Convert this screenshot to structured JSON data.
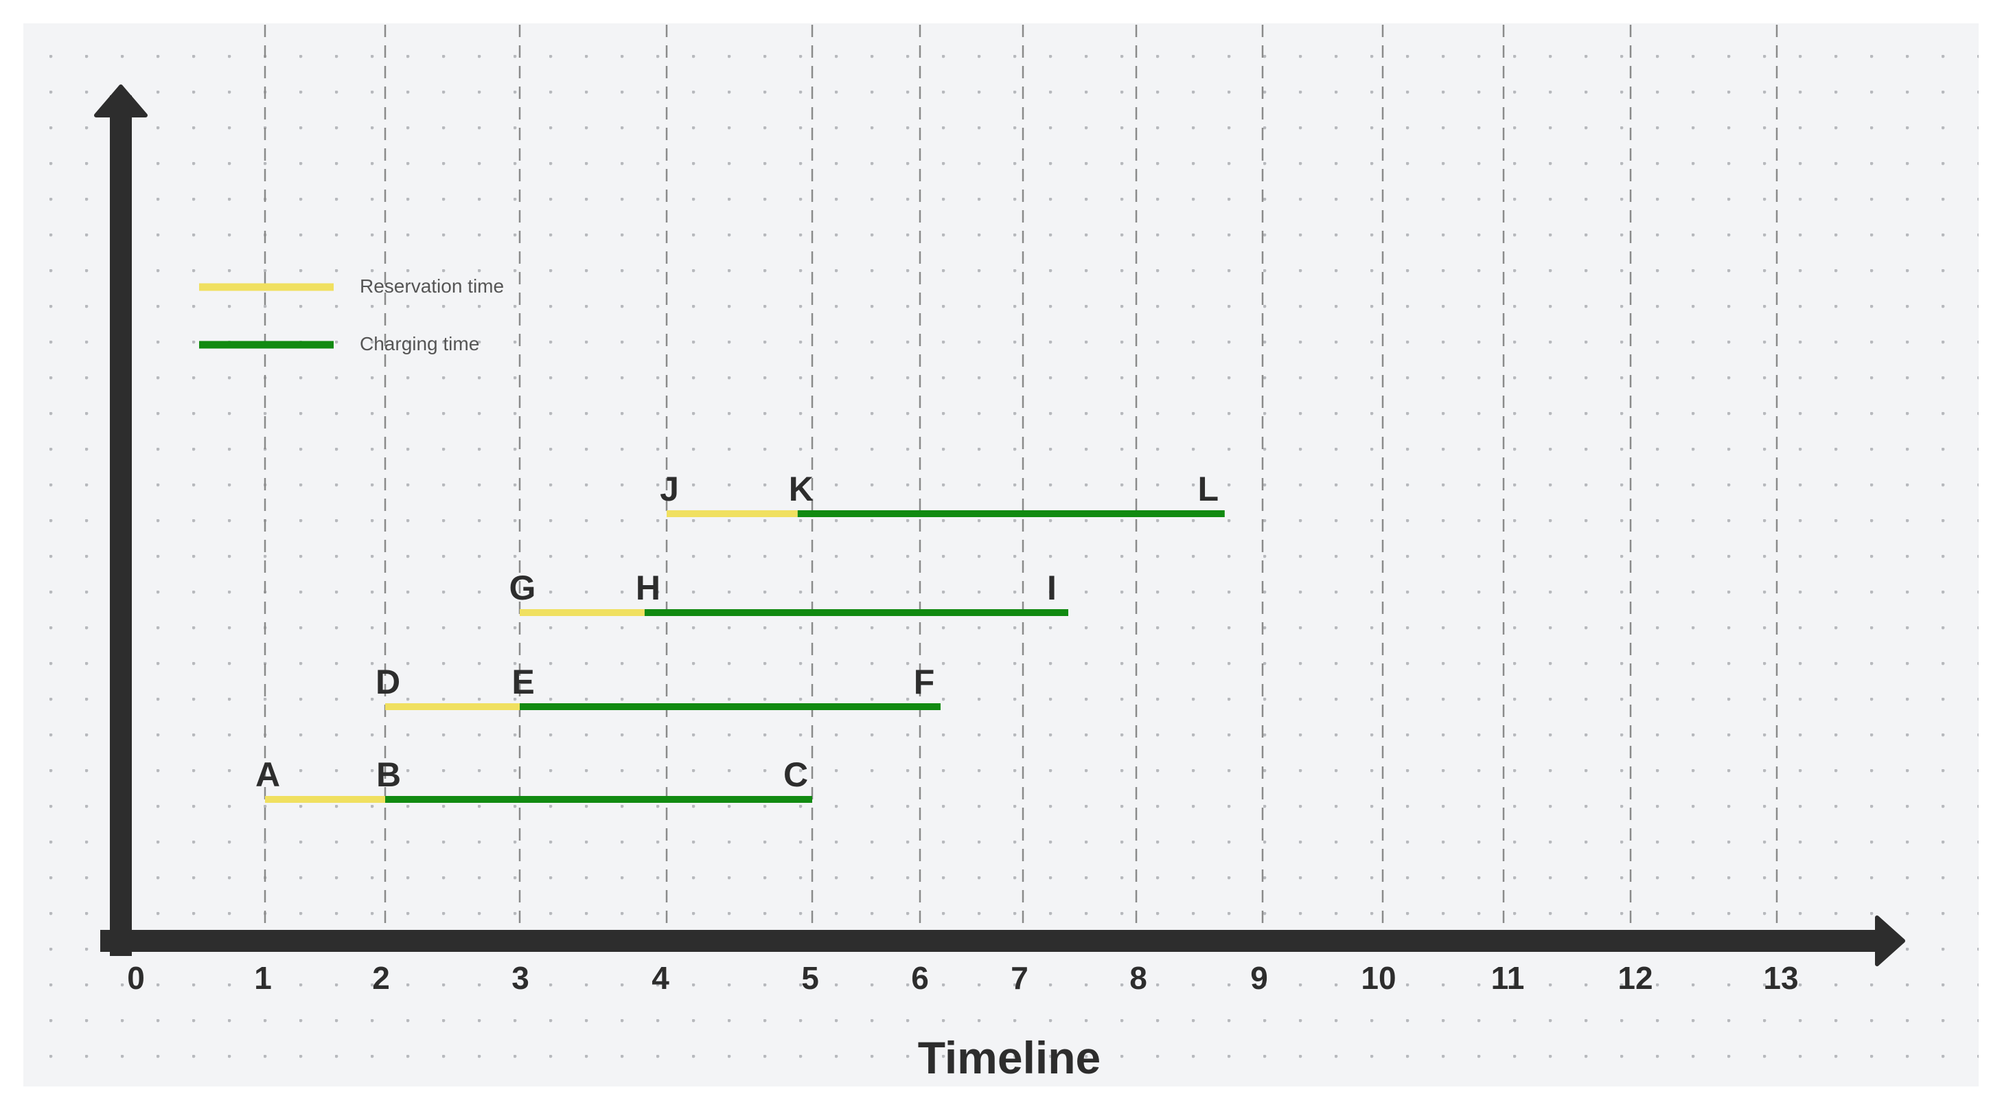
{
  "diagram": {
    "xlabel": "Timeline",
    "ticks": [
      "0",
      "1",
      "2",
      "3",
      "4",
      "5",
      "6",
      "7",
      "8",
      "9",
      "10",
      "11",
      "12",
      "13"
    ],
    "legend": [
      {
        "label": "Reservation time",
        "color": "#f0e060"
      },
      {
        "label": "Charging time",
        "color": "#118a11"
      }
    ],
    "colors": {
      "axis": "#2d2d2d",
      "grid": "#8a8a8a",
      "background": "#f3f4f6",
      "dots": "#b7b9bd"
    },
    "rows": [
      {
        "start": {
          "label": "A",
          "t": 1
        },
        "mid": {
          "label": "B",
          "t": 2
        },
        "end": {
          "label": "C",
          "t": 5
        }
      },
      {
        "start": {
          "label": "D",
          "t": 2
        },
        "mid": {
          "label": "E",
          "t": 3
        },
        "end": {
          "label": "F",
          "t": 6.2
        }
      },
      {
        "start": {
          "label": "G",
          "t": 3
        },
        "mid": {
          "label": "H",
          "t": 3.85
        },
        "end": {
          "label": "I",
          "t": 7.4
        }
      },
      {
        "start": {
          "label": "J",
          "t": 4
        },
        "mid": {
          "label": "K",
          "t": 4.9
        },
        "end": {
          "label": "L",
          "t": 8.7
        }
      }
    ]
  }
}
